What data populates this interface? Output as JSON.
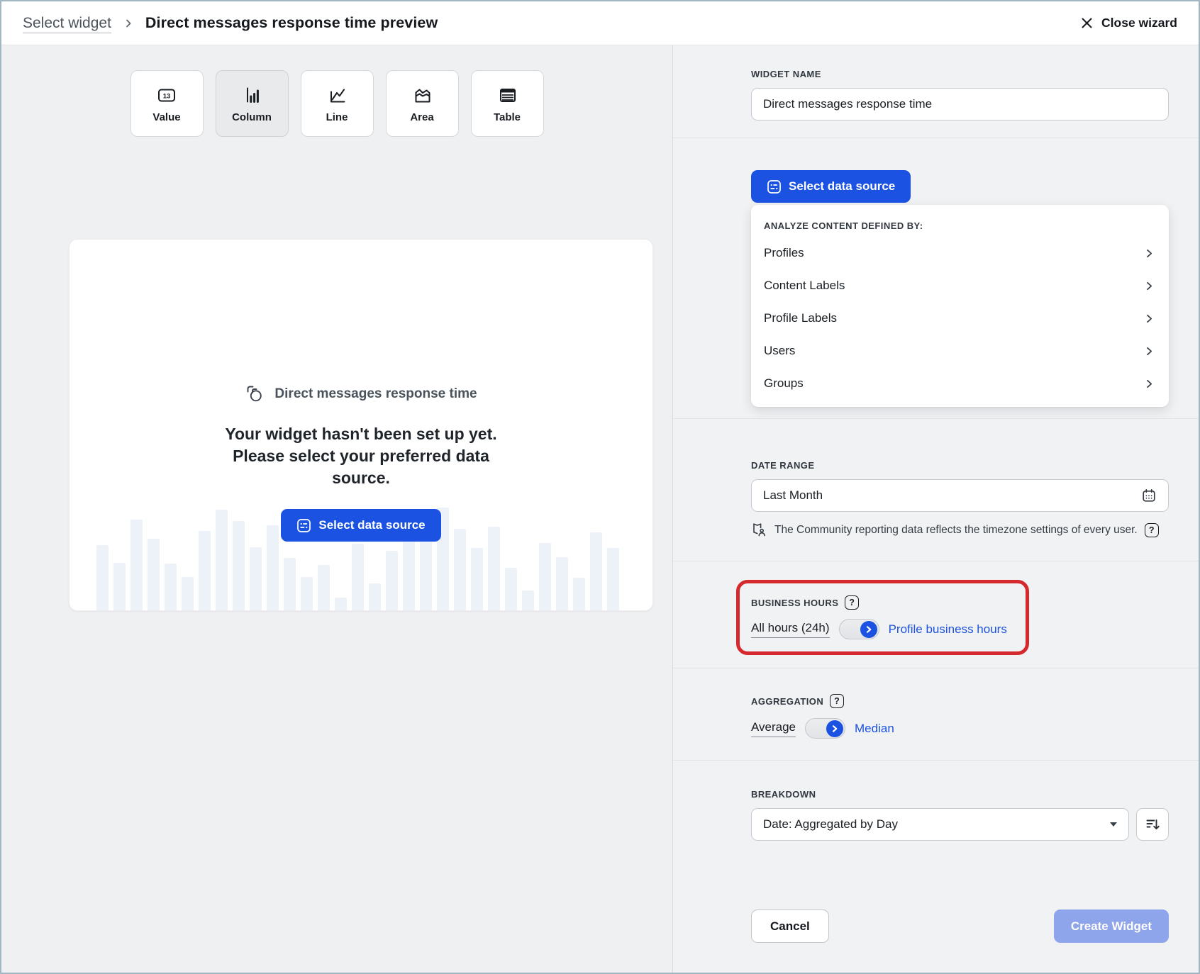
{
  "colors": {
    "accent_blue": "#1b52e1",
    "link_blue": "#1d52e0",
    "highlight_red": "#d42a2e",
    "create_disabled": "#8ea4eb",
    "bar_fill": "#edf1f8"
  },
  "header": {
    "breadcrumb": "Select widget",
    "title": "Direct messages response time preview",
    "close_label": "Close wizard"
  },
  "widget_types": {
    "selected": "Column",
    "options": [
      {
        "label": "Value",
        "icon": "value-widget-icon"
      },
      {
        "label": "Column",
        "icon": "column-chart-icon"
      },
      {
        "label": "Line",
        "icon": "line-chart-icon"
      },
      {
        "label": "Area",
        "icon": "area-chart-icon"
      },
      {
        "label": "Table",
        "icon": "table-icon"
      }
    ]
  },
  "preview": {
    "widget_title": "Direct messages response time",
    "empty_headline": "Your widget hasn't been set up yet.\nPlease select your preferred data\nsource.",
    "select_data_source_label": "Select data source",
    "bars": [
      92,
      67,
      128,
      101,
      66,
      47,
      112,
      142,
      126,
      89,
      120,
      74,
      47,
      64,
      18,
      94,
      38,
      84,
      128,
      100,
      145,
      115,
      88,
      118,
      60,
      28,
      95,
      75,
      46,
      110,
      88
    ]
  },
  "panel": {
    "widget_name": {
      "label": "WIDGET NAME",
      "value": "Direct messages response time"
    },
    "data_source": {
      "button_label": "Select data source",
      "dropdown_header": "ANALYZE CONTENT DEFINED BY:",
      "options": [
        "Profiles",
        "Content Labels",
        "Profile Labels",
        "Users",
        "Groups"
      ]
    },
    "date_range": {
      "label": "DATE RANGE",
      "value": "Last Month",
      "info": "The Community reporting data reflects the timezone settings of every user.",
      "help": "?"
    },
    "business_hours": {
      "label": "BUSINESS HOURS",
      "help": "?",
      "left": "All hours (24h)",
      "right": "Profile business hours"
    },
    "aggregation": {
      "label": "AGGREGATION",
      "help": "?",
      "left": "Average",
      "right": "Median"
    },
    "breakdown": {
      "label": "BREAKDOWN",
      "value": "Date: Aggregated by Day"
    },
    "footer": {
      "cancel": "Cancel",
      "create": "Create Widget"
    }
  }
}
